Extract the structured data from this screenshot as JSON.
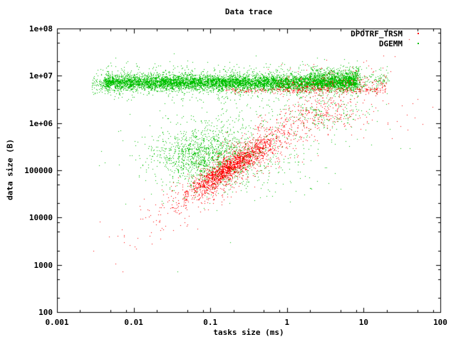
{
  "chart_data": {
    "type": "scatter",
    "title": "Data trace",
    "xlabel": "tasks size (ms)",
    "ylabel": "data size (B)",
    "x_scale": "log",
    "y_scale": "log",
    "xlim": [
      0.001,
      100
    ],
    "ylim": [
      100,
      100000000
    ],
    "grid": false,
    "legend_position": "top-right-inside",
    "x_ticks": {
      "values": [
        0.001,
        0.01,
        0.1,
        1,
        10,
        100
      ],
      "labels": [
        "0.001",
        "0.01",
        "0.1",
        "1",
        "10",
        "100"
      ]
    },
    "y_ticks": {
      "values": [
        100,
        1000,
        10000,
        100000,
        1000000,
        10000000,
        100000000
      ],
      "labels": [
        "100",
        "1000",
        "10000",
        "100000",
        "1e+06",
        "1e+07",
        "1e+08"
      ]
    },
    "minor_tick_multiples": [
      2,
      5,
      8
    ],
    "marker_style": "dot-1px",
    "seed": 42,
    "series": [
      {
        "name": "DPOTRF_TRSM",
        "color": "#ff0000",
        "description": "diagonal correlated band rising from (0.007, 3e3) through dense core (0.1-0.3, 1e5) to (3, 2e6); thin line under green band at ~5e6 for x>0.15; sparse points mixed in/above band and upper right",
        "clusters": [
          {
            "shape": "line",
            "n": 1500,
            "cx": -0.75,
            "sx": 0.28,
            "a": 5.82,
            "b": 1.02,
            "sy": 0.12
          },
          {
            "shape": "line",
            "n": 950,
            "cx": -0.5,
            "sx": 0.6,
            "a": 5.82,
            "b": 1.02,
            "sy": 0.28
          },
          {
            "shape": "band_x",
            "n": 260,
            "x0": -0.82,
            "x1": 1.3,
            "cy": 6.7,
            "sy": 0.03
          },
          {
            "shape": "band_x",
            "n": 250,
            "x0": -0.17,
            "x1": 1.3,
            "cy": 6.82,
            "sy": 0.1
          },
          {
            "shape": "gauss2d",
            "n": 150,
            "cx": 0.45,
            "sx": 0.25,
            "cy": 6.22,
            "sy": 0.18
          },
          {
            "shape": "gauss2d",
            "n": 45,
            "cx": 0.9,
            "sx": 0.4,
            "cy": 6.15,
            "sy": 0.3
          },
          {
            "shape": "gauss2d",
            "n": 25,
            "cx": 0.55,
            "sx": 0.35,
            "cy": 7.15,
            "sy": 0.07
          }
        ],
        "outlier_points": [
          [
            0.0071,
            712
          ]
        ]
      },
      {
        "name": "DGEMM",
        "color": "#00c000",
        "description": "dense horizontal band at ~5e6-1.2e7 from x=0.004 to x=8 with sparse tail to x=20; diffuse cloud around (0.1, 2e5); sparse mid-region points; mixed cluster near (3, 1.6e6)",
        "clusters": [
          {
            "shape": "band_x",
            "n": 6000,
            "x0": -2.38,
            "x1": 0.9,
            "cy": 6.86,
            "sy": 0.075
          },
          {
            "shape": "band_x",
            "n": 1400,
            "x0": -2.38,
            "x1": 0.92,
            "cy": 6.88,
            "sy": 0.17
          },
          {
            "shape": "band_x",
            "n": 80,
            "x0": -2.55,
            "x1": -2.38,
            "cy": 6.82,
            "sy": 0.1
          },
          {
            "shape": "band_x",
            "n": 700,
            "x0": 0.3,
            "x1": 0.95,
            "cy": 6.95,
            "sy": 0.11
          },
          {
            "shape": "band_x",
            "n": 130,
            "x0": 0.9,
            "x1": 1.33,
            "cy": 6.9,
            "sy": 0.12
          },
          {
            "shape": "gauss2d",
            "n": 1300,
            "cx": -1.05,
            "sx": 0.33,
            "cy": 5.28,
            "sy": 0.3
          },
          {
            "shape": "gauss2d",
            "n": 450,
            "cx": -0.75,
            "sx": 0.6,
            "cy": 5.4,
            "sy": 0.5
          },
          {
            "shape": "gauss2d",
            "n": 70,
            "cx": -0.3,
            "sx": 0.6,
            "cy": 6.3,
            "sy": 0.25
          },
          {
            "shape": "gauss2d",
            "n": 150,
            "cx": 0.45,
            "sx": 0.22,
            "cy": 6.2,
            "sy": 0.16
          },
          {
            "shape": "gauss2d",
            "n": 25,
            "cx": 0.85,
            "sx": 0.35,
            "cy": 6.1,
            "sy": 0.3
          }
        ],
        "outlier_points": [
          [
            0.037,
            712
          ]
        ]
      }
    ],
    "axis_color": "#000000",
    "background_color": "#ffffff"
  }
}
